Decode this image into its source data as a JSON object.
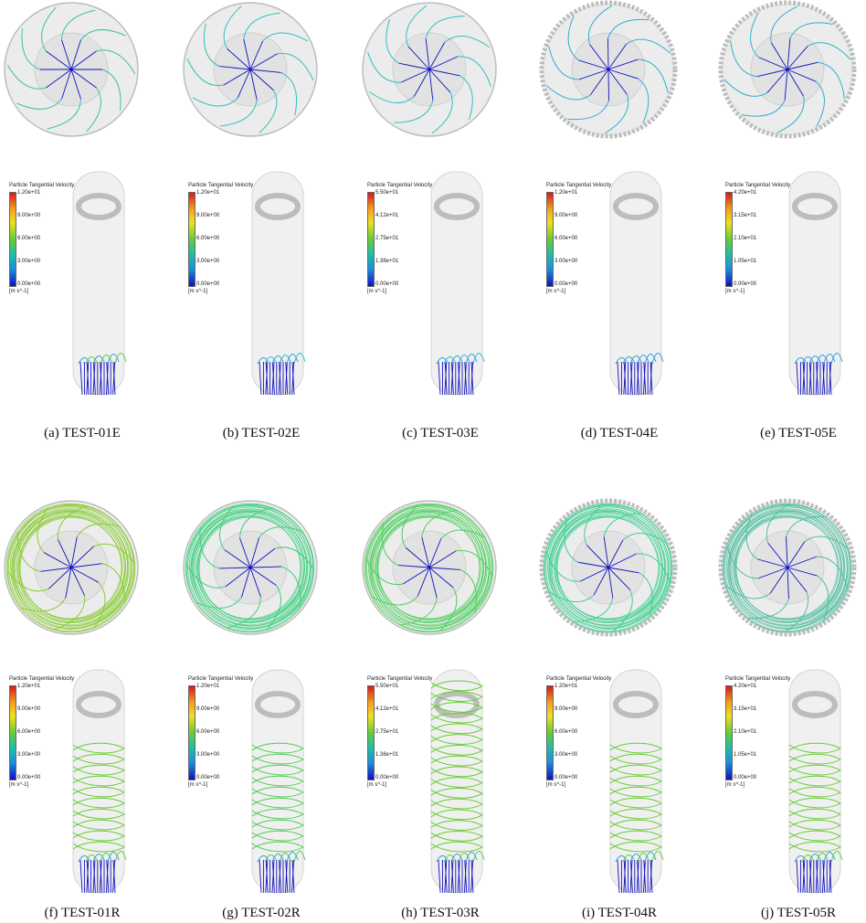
{
  "colors": {
    "low": "#1010c0",
    "mid": "#20c0c0",
    "high": "#66cc33",
    "hot": "#d7191c"
  },
  "panels": [
    {
      "caption": "(a) TEST-01E",
      "colorbar": {
        "title": "Particle Tangential Velocity",
        "ticks": [
          "1.20e+01",
          "9.00e+00",
          "6.00e+00",
          "3.00e+00",
          "0.00e+00"
        ],
        "unit": "[m s^-1]"
      }
    },
    {
      "caption": "(b) TEST-02E",
      "colorbar": {
        "title": "Particle Tangential Velocity",
        "ticks": [
          "1.20e+01",
          "9.00e+00",
          "6.00e+00",
          "3.00e+00",
          "0.00e+00"
        ],
        "unit": "[m s^-1]"
      }
    },
    {
      "caption": "(c) TEST-03E",
      "colorbar": {
        "title": "Particle Tangential Velocity",
        "ticks": [
          "5.50e+01",
          "4.12e+01",
          "2.75e+01",
          "1.38e+01",
          "0.00e+00"
        ],
        "unit": "[m s^-1]"
      }
    },
    {
      "caption": "(d) TEST-04E",
      "colorbar": {
        "title": "Particle Tangential Velocity",
        "ticks": [
          "1.20e+01",
          "9.00e+00",
          "6.00e+00",
          "3.00e+00",
          "0.00e+00"
        ],
        "unit": "[m s^-1]"
      }
    },
    {
      "caption": "(e) TEST-05E",
      "colorbar": {
        "title": "Particle Tangential Velocity",
        "ticks": [
          "4.20e+01",
          "3.15e+01",
          "2.10e+01",
          "1.05e+01",
          "0.00e+00"
        ],
        "unit": "[m s^-1]"
      }
    },
    {
      "caption": "(f) TEST-01R",
      "colorbar": {
        "title": "Particle Tangential Velocity",
        "ticks": [
          "1.20e+01",
          "9.00e+00",
          "6.00e+00",
          "3.00e+00",
          "0.00e+00"
        ],
        "unit": "[m s^-1]"
      }
    },
    {
      "caption": "(g) TEST-02R",
      "colorbar": {
        "title": "Particle Tangential Velocity",
        "ticks": [
          "1.20e+01",
          "9.00e+00",
          "6.00e+00",
          "3.00e+00",
          "0.00e+00"
        ],
        "unit": "[m s^-1]"
      }
    },
    {
      "caption": "(h) TEST-03R",
      "colorbar": {
        "title": "Particle Tangential Velocity",
        "ticks": [
          "5.50e+01",
          "4.12e+01",
          "2.75e+01",
          "1.38e+01",
          "0.00e+00"
        ],
        "unit": "[m s^-1]"
      }
    },
    {
      "caption": "(i) TEST-04R",
      "colorbar": {
        "title": "Particle Tangential Velocity",
        "ticks": [
          "1.20e+01",
          "9.00e+00",
          "6.00e+00",
          "3.00e+00",
          "0.00e+00"
        ],
        "unit": "[m s^-1]"
      }
    },
    {
      "caption": "(j) TEST-05R",
      "colorbar": {
        "title": "Particle Tangential Velocity",
        "ticks": [
          "4.20e+01",
          "3.15e+01",
          "2.10e+01",
          "1.05e+01",
          "0.00e+00"
        ],
        "unit": "[m s^-1]"
      }
    }
  ]
}
